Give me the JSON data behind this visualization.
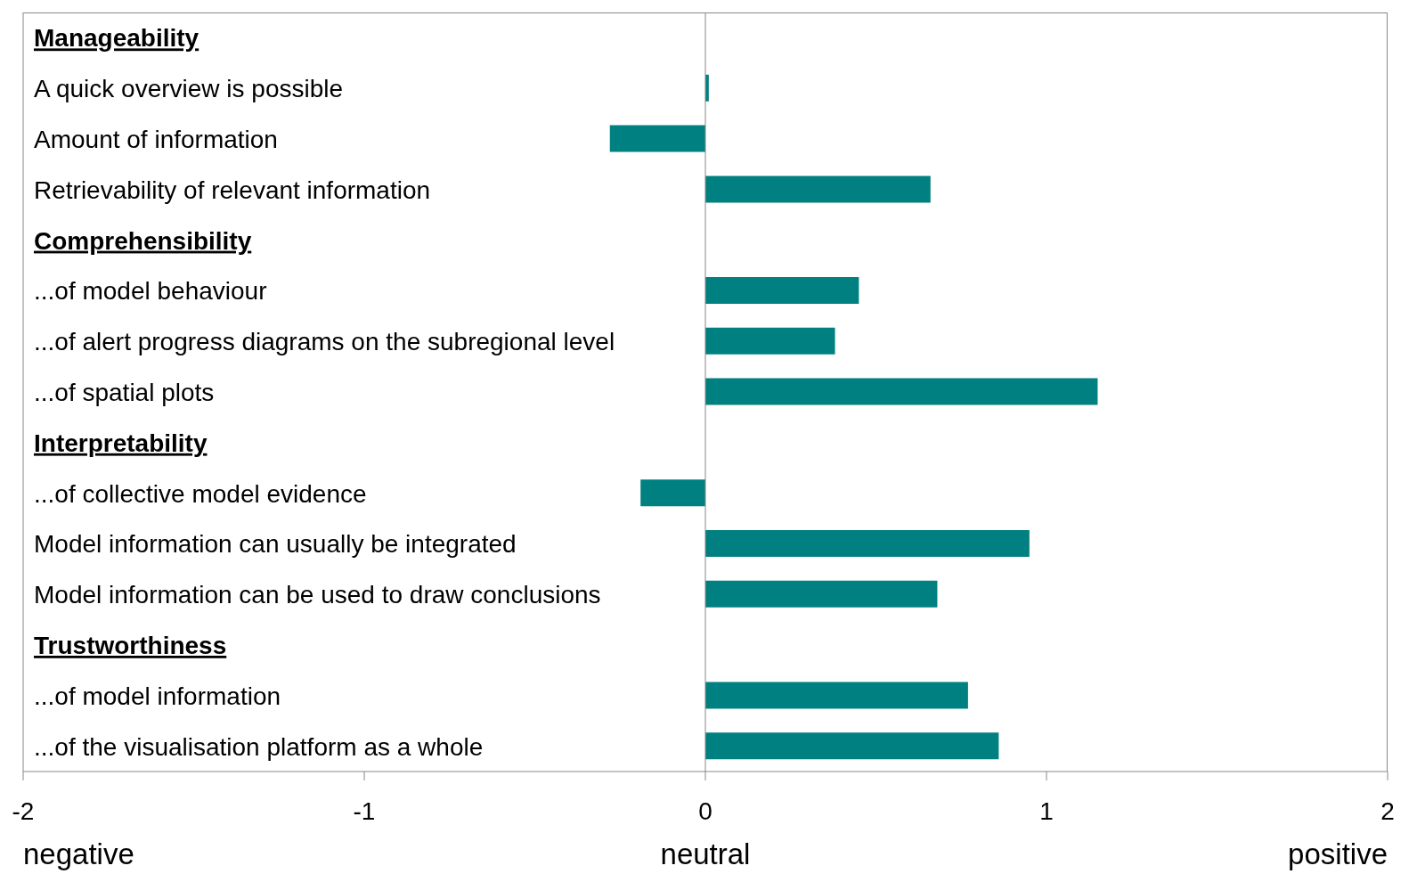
{
  "chart_data": {
    "type": "bar",
    "orientation": "horizontal",
    "categories": [
      "Manageability",
      "A quick overview is possible",
      "Amount of information",
      "Retrievability of relevant information",
      "Comprehensibility",
      "...of model behaviour",
      "...of alert progress diagrams on the subregional level",
      "...of spatial plots",
      "Interpretability",
      "...of collective model evidence",
      "Model information can usually be integrated",
      "Model information can be used to draw conclusions",
      "Trustworthiness",
      "...of model information",
      "...of the visualisation platform as a whole"
    ],
    "values": [
      null,
      0.01,
      -0.28,
      0.66,
      null,
      0.45,
      0.38,
      1.15,
      null,
      -0.19,
      0.95,
      0.68,
      null,
      0.77,
      0.86
    ],
    "color": "#008080",
    "xlim": [
      -2,
      2
    ],
    "xticks": [
      -2,
      -1,
      0,
      1,
      2
    ],
    "annotations": [
      "negative",
      "neutral",
      "positive"
    ]
  }
}
